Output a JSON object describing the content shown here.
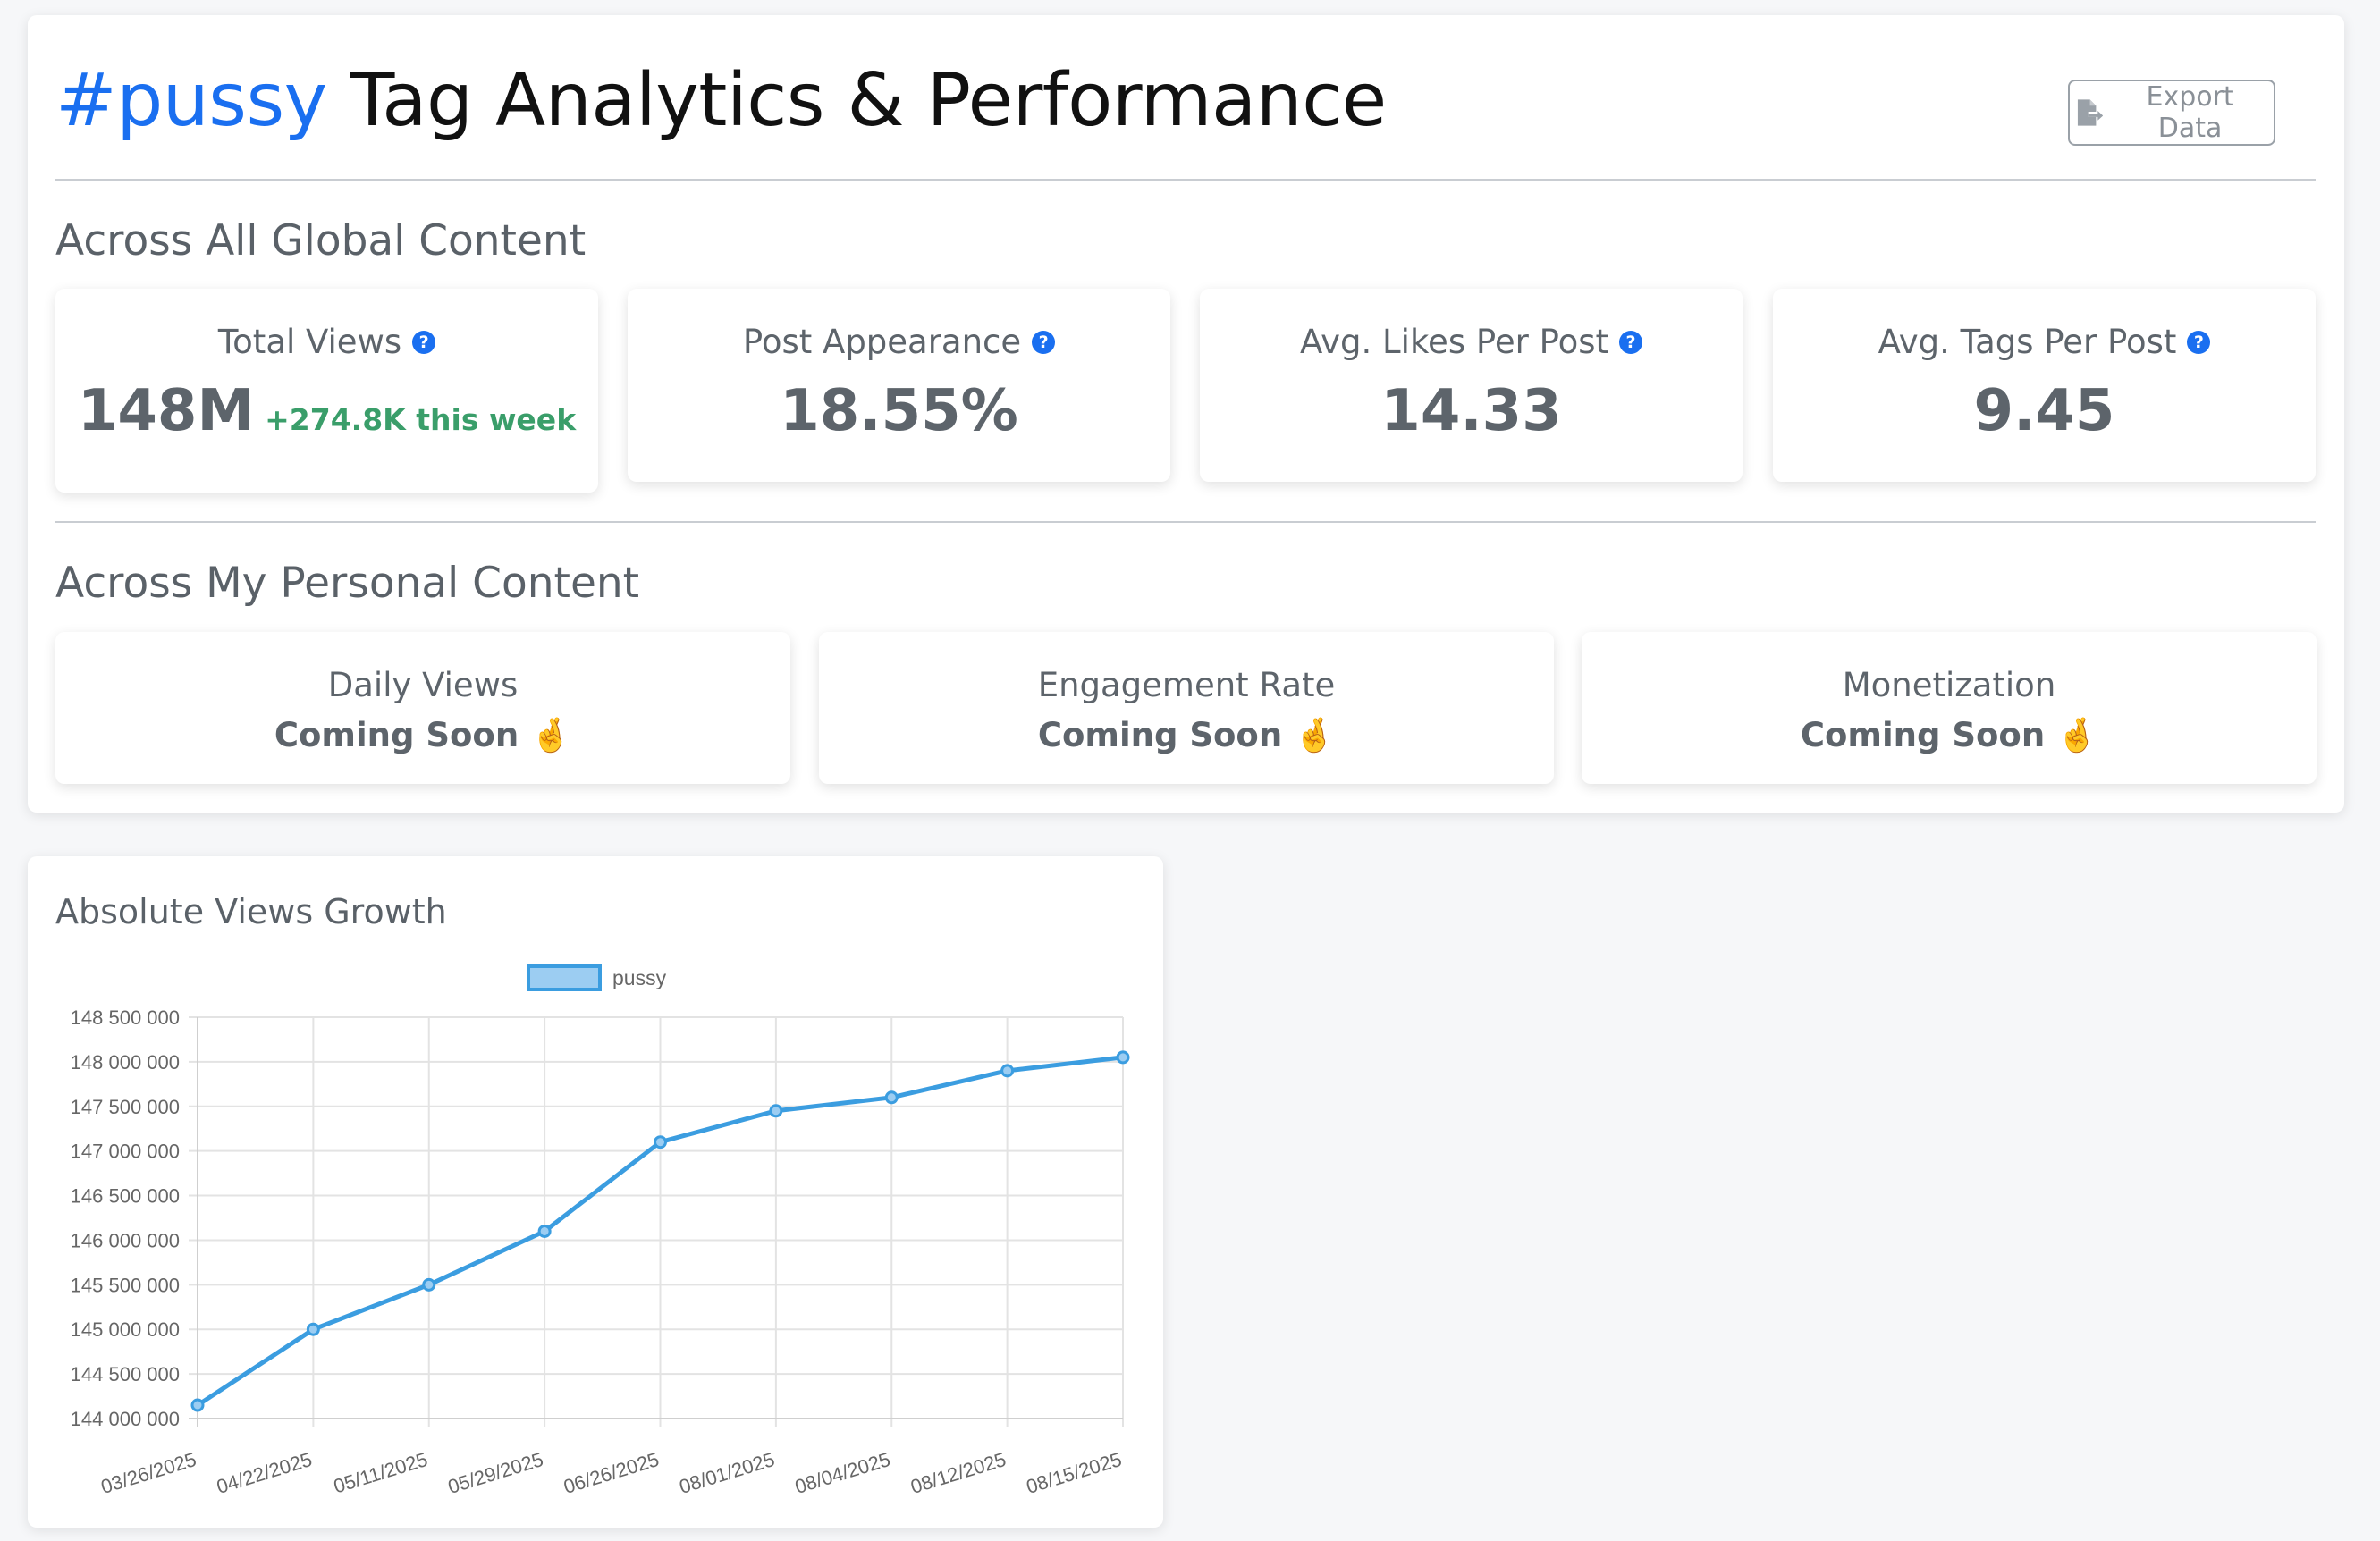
{
  "header": {
    "tag": "#pussy",
    "title_rest": "Tag Analytics & Performance",
    "export_label": "Export Data"
  },
  "global": {
    "heading": "Across All Global Content",
    "cards": [
      {
        "label": "Total Views",
        "value": "148M",
        "delta": "+274.8K this week"
      },
      {
        "label": "Post Appearance",
        "value": "18.55%"
      },
      {
        "label": "Avg. Likes Per Post",
        "value": "14.33"
      },
      {
        "label": "Avg. Tags Per Post",
        "value": "9.45"
      }
    ],
    "help_glyph": "?"
  },
  "personal": {
    "heading": "Across My Personal Content",
    "cards": [
      {
        "label": "Daily Views",
        "status": "Coming Soon 🤞"
      },
      {
        "label": "Engagement Rate",
        "status": "Coming Soon 🤞"
      },
      {
        "label": "Monetization",
        "status": "Coming Soon 🤞"
      }
    ]
  },
  "chart_data": {
    "type": "line",
    "title": "Absolute Views Growth",
    "categories": [
      "03/26/2025",
      "04/22/2025",
      "05/11/2025",
      "05/29/2025",
      "06/26/2025",
      "08/01/2025",
      "08/04/2025",
      "08/12/2025",
      "08/15/2025"
    ],
    "series": [
      {
        "name": "pussy",
        "values": [
          144150000,
          145000000,
          145500000,
          146100000,
          147100000,
          147450000,
          147600000,
          147900000,
          148050000
        ]
      }
    ],
    "ylim": [
      144000000,
      148500000
    ],
    "yticks": [
      144000000,
      144500000,
      145000000,
      145500000,
      146000000,
      146500000,
      147000000,
      147500000,
      148000000,
      148500000
    ],
    "ytick_labels": [
      "144 000 000",
      "144 500 000",
      "145 000 000",
      "145 500 000",
      "146 000 000",
      "146 500 000",
      "147 000 000",
      "147 500 000",
      "148 000 000",
      "148 500 000"
    ],
    "legend": "top",
    "grid": true,
    "line_color": "#3b9de0",
    "fill_color": "#9ccdf2"
  }
}
